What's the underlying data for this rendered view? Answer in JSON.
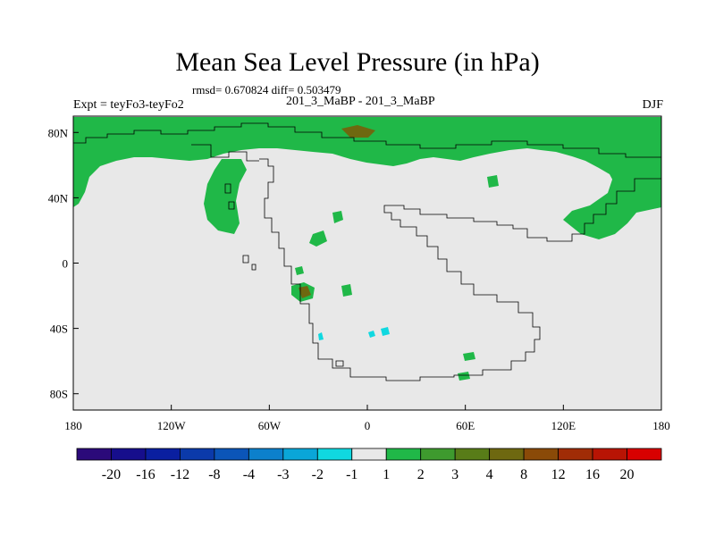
{
  "title": "Mean Sea Level Pressure (in hPa)",
  "stats": "rmsd= 0.670824 diff= 0.503479",
  "experiment": "Expt = teyFo3-teyFo2",
  "period": "201_3_MaBP - 201_3_MaBP",
  "season": "DJF",
  "map": {
    "lon_range": [
      -180,
      180
    ],
    "lat_range": [
      -90,
      90
    ],
    "x_ticks": [
      {
        "value": -180,
        "label": "180"
      },
      {
        "value": -120,
        "label": "120W"
      },
      {
        "value": -60,
        "label": "60W"
      },
      {
        "value": 0,
        "label": "0"
      },
      {
        "value": 60,
        "label": "60E"
      },
      {
        "value": 120,
        "label": "120E"
      },
      {
        "value": 180,
        "label": "180"
      }
    ],
    "y_ticks": [
      {
        "value": 80,
        "label": "80N"
      },
      {
        "value": 40,
        "label": "40N"
      },
      {
        "value": 0,
        "label": "0"
      },
      {
        "value": -40,
        "label": "40S"
      },
      {
        "value": -80,
        "label": "80S"
      }
    ],
    "background_color": "#e8e8e8"
  },
  "colorbar": {
    "colors": [
      "#2b0a7a",
      "#160e8c",
      "#0a1fa0",
      "#0b3aaa",
      "#0b55b8",
      "#0c80cc",
      "#0aa6d8",
      "#10d8e0",
      "#e8e8e8",
      "#20b848",
      "#3e9a2e",
      "#587c18",
      "#6e6810",
      "#8a4a08",
      "#a02c06",
      "#b81404",
      "#d80000"
    ],
    "labels": [
      "-20",
      "-16",
      "-12",
      "-8",
      "-4",
      "-3",
      "-2",
      "-1",
      "1",
      "2",
      "3",
      "4",
      "8",
      "12",
      "16",
      "20"
    ]
  }
}
